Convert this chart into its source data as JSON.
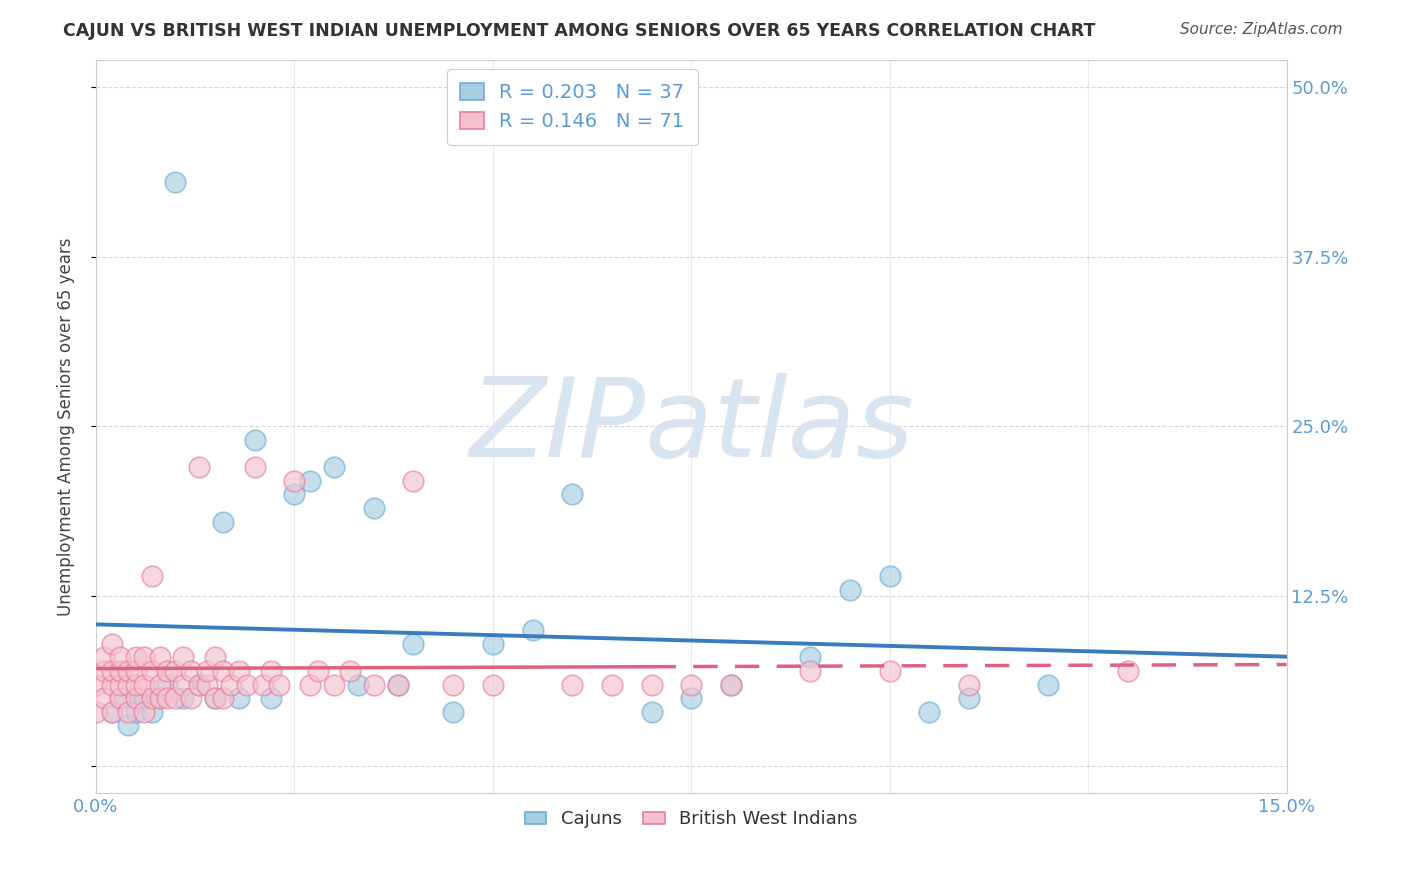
{
  "title": "CAJUN VS BRITISH WEST INDIAN UNEMPLOYMENT AMONG SENIORS OVER 65 YEARS CORRELATION CHART",
  "source": "Source: ZipAtlas.com",
  "ylabel": "Unemployment Among Seniors over 65 years",
  "xlim": [
    0,
    0.15
  ],
  "ylim": [
    -0.02,
    0.52
  ],
  "ytick_vals": [
    0.0,
    0.125,
    0.25,
    0.375,
    0.5
  ],
  "ytick_labels": [
    "",
    "12.5%",
    "25.0%",
    "37.5%",
    "50.0%"
  ],
  "xtick_vals": [
    0.0,
    0.025,
    0.05,
    0.075,
    0.1,
    0.125,
    0.15
  ],
  "xtick_labels": [
    "0.0%",
    "",
    "",
    "",
    "",
    "",
    "15.0%"
  ],
  "legend_cajun_r": "R = 0.203",
  "legend_cajun_n": "N = 37",
  "legend_bwi_r": "R = 0.146",
  "legend_bwi_n": "N = 71",
  "cajun_color": "#a8cce0",
  "cajun_edge_color": "#6aaed6",
  "bwi_color": "#f4c2cf",
  "bwi_edge_color": "#e87fa0",
  "cajun_line_color": "#3a7abf",
  "bwi_line_color": "#e06080",
  "watermark_color": "#d8e4ef",
  "background_color": "#ffffff",
  "cajun_x": [
    0.002,
    0.003,
    0.004,
    0.005,
    0.005,
    0.006,
    0.007,
    0.008,
    0.009,
    0.01,
    0.011,
    0.013,
    0.015,
    0.016,
    0.018,
    0.02,
    0.022,
    0.025,
    0.027,
    0.03,
    0.033,
    0.035,
    0.038,
    0.04,
    0.045,
    0.05,
    0.055,
    0.06,
    0.07,
    0.075,
    0.08,
    0.09,
    0.095,
    0.1,
    0.105,
    0.11,
    0.12
  ],
  "cajun_y": [
    0.04,
    0.05,
    0.03,
    0.05,
    0.04,
    0.05,
    0.04,
    0.05,
    0.06,
    0.43,
    0.05,
    0.06,
    0.05,
    0.18,
    0.05,
    0.24,
    0.05,
    0.2,
    0.21,
    0.22,
    0.06,
    0.19,
    0.06,
    0.09,
    0.04,
    0.09,
    0.1,
    0.2,
    0.04,
    0.05,
    0.06,
    0.08,
    0.13,
    0.14,
    0.04,
    0.05,
    0.06
  ],
  "bwi_x": [
    0.0,
    0.0,
    0.001,
    0.001,
    0.001,
    0.002,
    0.002,
    0.002,
    0.002,
    0.003,
    0.003,
    0.003,
    0.003,
    0.004,
    0.004,
    0.004,
    0.005,
    0.005,
    0.005,
    0.005,
    0.006,
    0.006,
    0.006,
    0.007,
    0.007,
    0.007,
    0.008,
    0.008,
    0.008,
    0.009,
    0.009,
    0.01,
    0.01,
    0.011,
    0.011,
    0.012,
    0.012,
    0.013,
    0.013,
    0.014,
    0.014,
    0.015,
    0.015,
    0.016,
    0.016,
    0.017,
    0.018,
    0.019,
    0.02,
    0.021,
    0.022,
    0.023,
    0.025,
    0.027,
    0.028,
    0.03,
    0.032,
    0.035,
    0.038,
    0.04,
    0.045,
    0.05,
    0.06,
    0.065,
    0.07,
    0.075,
    0.08,
    0.09,
    0.1,
    0.11,
    0.13
  ],
  "bwi_y": [
    0.04,
    0.06,
    0.05,
    0.07,
    0.08,
    0.04,
    0.06,
    0.07,
    0.09,
    0.05,
    0.06,
    0.07,
    0.08,
    0.04,
    0.06,
    0.07,
    0.05,
    0.06,
    0.07,
    0.08,
    0.04,
    0.06,
    0.08,
    0.05,
    0.07,
    0.14,
    0.05,
    0.06,
    0.08,
    0.05,
    0.07,
    0.05,
    0.07,
    0.06,
    0.08,
    0.05,
    0.07,
    0.06,
    0.22,
    0.06,
    0.07,
    0.05,
    0.08,
    0.05,
    0.07,
    0.06,
    0.07,
    0.06,
    0.22,
    0.06,
    0.07,
    0.06,
    0.21,
    0.06,
    0.07,
    0.06,
    0.07,
    0.06,
    0.06,
    0.21,
    0.06,
    0.06,
    0.06,
    0.06,
    0.06,
    0.06,
    0.06,
    0.07,
    0.07,
    0.06,
    0.07
  ]
}
